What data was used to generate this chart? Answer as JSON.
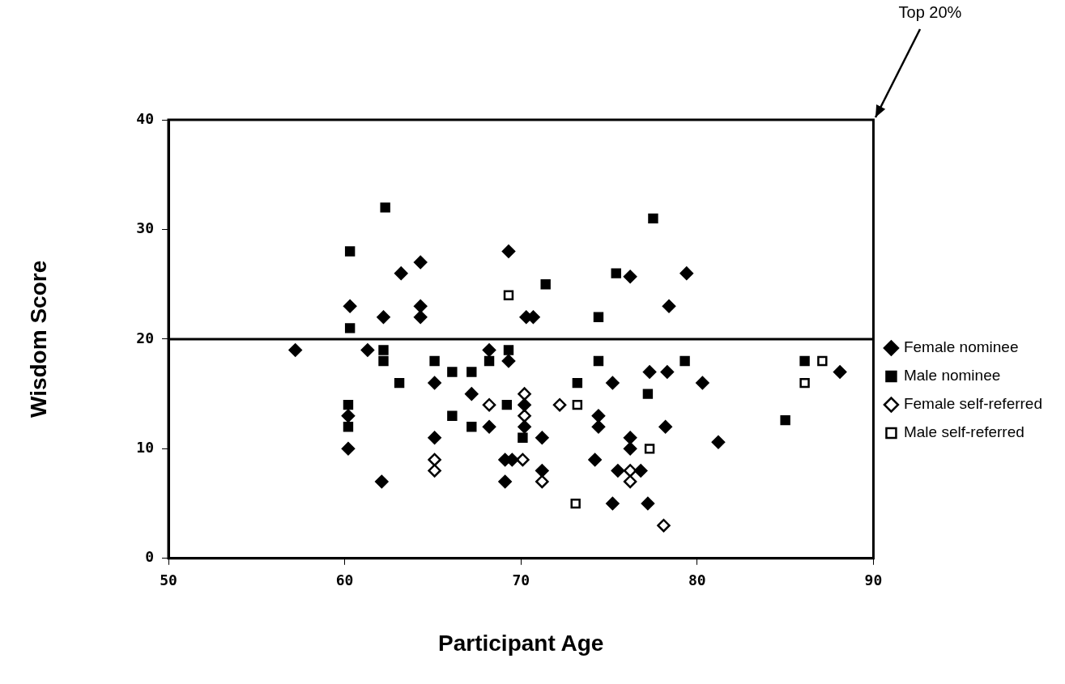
{
  "chart_data": {
    "type": "scatter",
    "xlabel": "Participant Age",
    "ylabel": "Wisdom Score",
    "xlim": [
      50,
      90
    ],
    "ylim": [
      0,
      40
    ],
    "xticks": [
      50,
      60,
      70,
      80,
      90
    ],
    "yticks": [
      0,
      10,
      20,
      30,
      40
    ],
    "grid": false,
    "legend": "right",
    "annotations": [
      "Top 20%"
    ],
    "ref_lines": [
      {
        "axis": "y",
        "value": 20,
        "color": "#000000"
      }
    ],
    "series": [
      {
        "name": "Female nominee",
        "color": "#000000",
        "marker": "diamond",
        "x": [
          57.2,
          61.3,
          63.2,
          64.3,
          60.3,
          62.2,
          64.3,
          64.3,
          68.2,
          65.1,
          67.2,
          68.2,
          60.2,
          60.2,
          65.1,
          62.1,
          69.3,
          70.3,
          70.7,
          76.2,
          79.4,
          78.4,
          69.3,
          77.3,
          78.3,
          75.2,
          80.3,
          70.2,
          70.2,
          74.4,
          74.4,
          71.2,
          78.2,
          81.2,
          76.2,
          76.2,
          74.2,
          69.1,
          69.5,
          69.1,
          71.2,
          75.5,
          76.8,
          75.2,
          77.2,
          88.1
        ],
        "values": [
          19,
          19,
          26,
          27,
          23,
          22,
          23,
          22,
          19,
          16,
          15,
          12,
          13,
          10,
          11,
          7,
          28,
          22,
          22,
          25.7,
          26,
          23,
          18,
          17,
          17,
          16,
          16,
          14,
          12,
          13,
          12,
          11,
          12,
          10.6,
          11,
          10,
          9,
          9,
          9,
          7,
          8,
          8,
          8,
          5,
          5,
          17
        ]
      },
      {
        "name": "Male nominee",
        "color": "#000000",
        "marker": "square",
        "x": [
          62.3,
          60.3,
          60.3,
          62.2,
          62.2,
          63.1,
          65.1,
          66.1,
          67.2,
          68.2,
          66.1,
          67.2,
          60.2,
          60.2,
          71.4,
          74.4,
          77.5,
          75.4,
          69.3,
          74.4,
          79.3,
          73.2,
          77.2,
          69.2,
          70.1,
          86.1,
          85
        ],
        "values": [
          32,
          28,
          21,
          19,
          18,
          16,
          18,
          17,
          17,
          18,
          13,
          12,
          14,
          12,
          25,
          22,
          31,
          26,
          19,
          18,
          18,
          16,
          15,
          14,
          11,
          18,
          12.6
        ]
      },
      {
        "name": "Female self-referred",
        "color": "#ffffff",
        "marker": "diamond",
        "x": [
          68.2,
          65.1,
          65.1,
          70.2,
          70.2,
          72.2,
          70.1,
          71.2,
          76.2,
          76.2,
          78.1
        ],
        "values": [
          14,
          9,
          8,
          15,
          13,
          14,
          9,
          7,
          8,
          7,
          3
        ]
      },
      {
        "name": "Male self-referred",
        "color": "#ffffff",
        "marker": "square",
        "x": [
          69.3,
          73.2,
          77.3,
          73.1,
          87.1,
          86.1
        ],
        "values": [
          24,
          14,
          10,
          5,
          18,
          16
        ]
      }
    ]
  }
}
